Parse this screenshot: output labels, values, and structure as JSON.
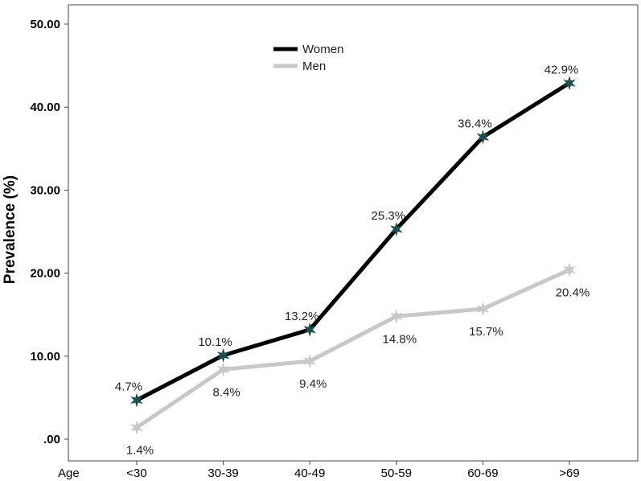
{
  "chart_data": {
    "type": "line",
    "title": "",
    "xlabel": "Age",
    "ylabel": "Prevalence (%)",
    "categories": [
      "<30",
      "30-39",
      "40-49",
      "50-59",
      "60-69",
      ">69"
    ],
    "ylim": [
      0,
      50
    ],
    "yticks": [
      0,
      10,
      20,
      30,
      40,
      50
    ],
    "ytick_labels": [
      ".00",
      "10.00",
      "20.00",
      "30.00",
      "40.00",
      "50.00"
    ],
    "grid": false,
    "legend_position": "top-center",
    "series": [
      {
        "name": "Women",
        "color": "#000000",
        "marker_color": "#1f4e4e",
        "marker": "star",
        "values": [
          4.7,
          10.1,
          13.2,
          25.3,
          36.4,
          42.9
        ],
        "labels": [
          "4.7%",
          "10.1%",
          "13.2%",
          "25.3%",
          "36.4%",
          "42.9%"
        ]
      },
      {
        "name": "Men",
        "color": "#c8c8c8",
        "marker_color": "#c8c8c8",
        "marker": "star",
        "values": [
          1.4,
          8.4,
          9.4,
          14.8,
          15.7,
          20.4
        ],
        "labels": [
          "1.4%",
          "8.4%",
          "9.4%",
          "14.8%",
          "15.7%",
          "20.4%"
        ]
      }
    ]
  }
}
